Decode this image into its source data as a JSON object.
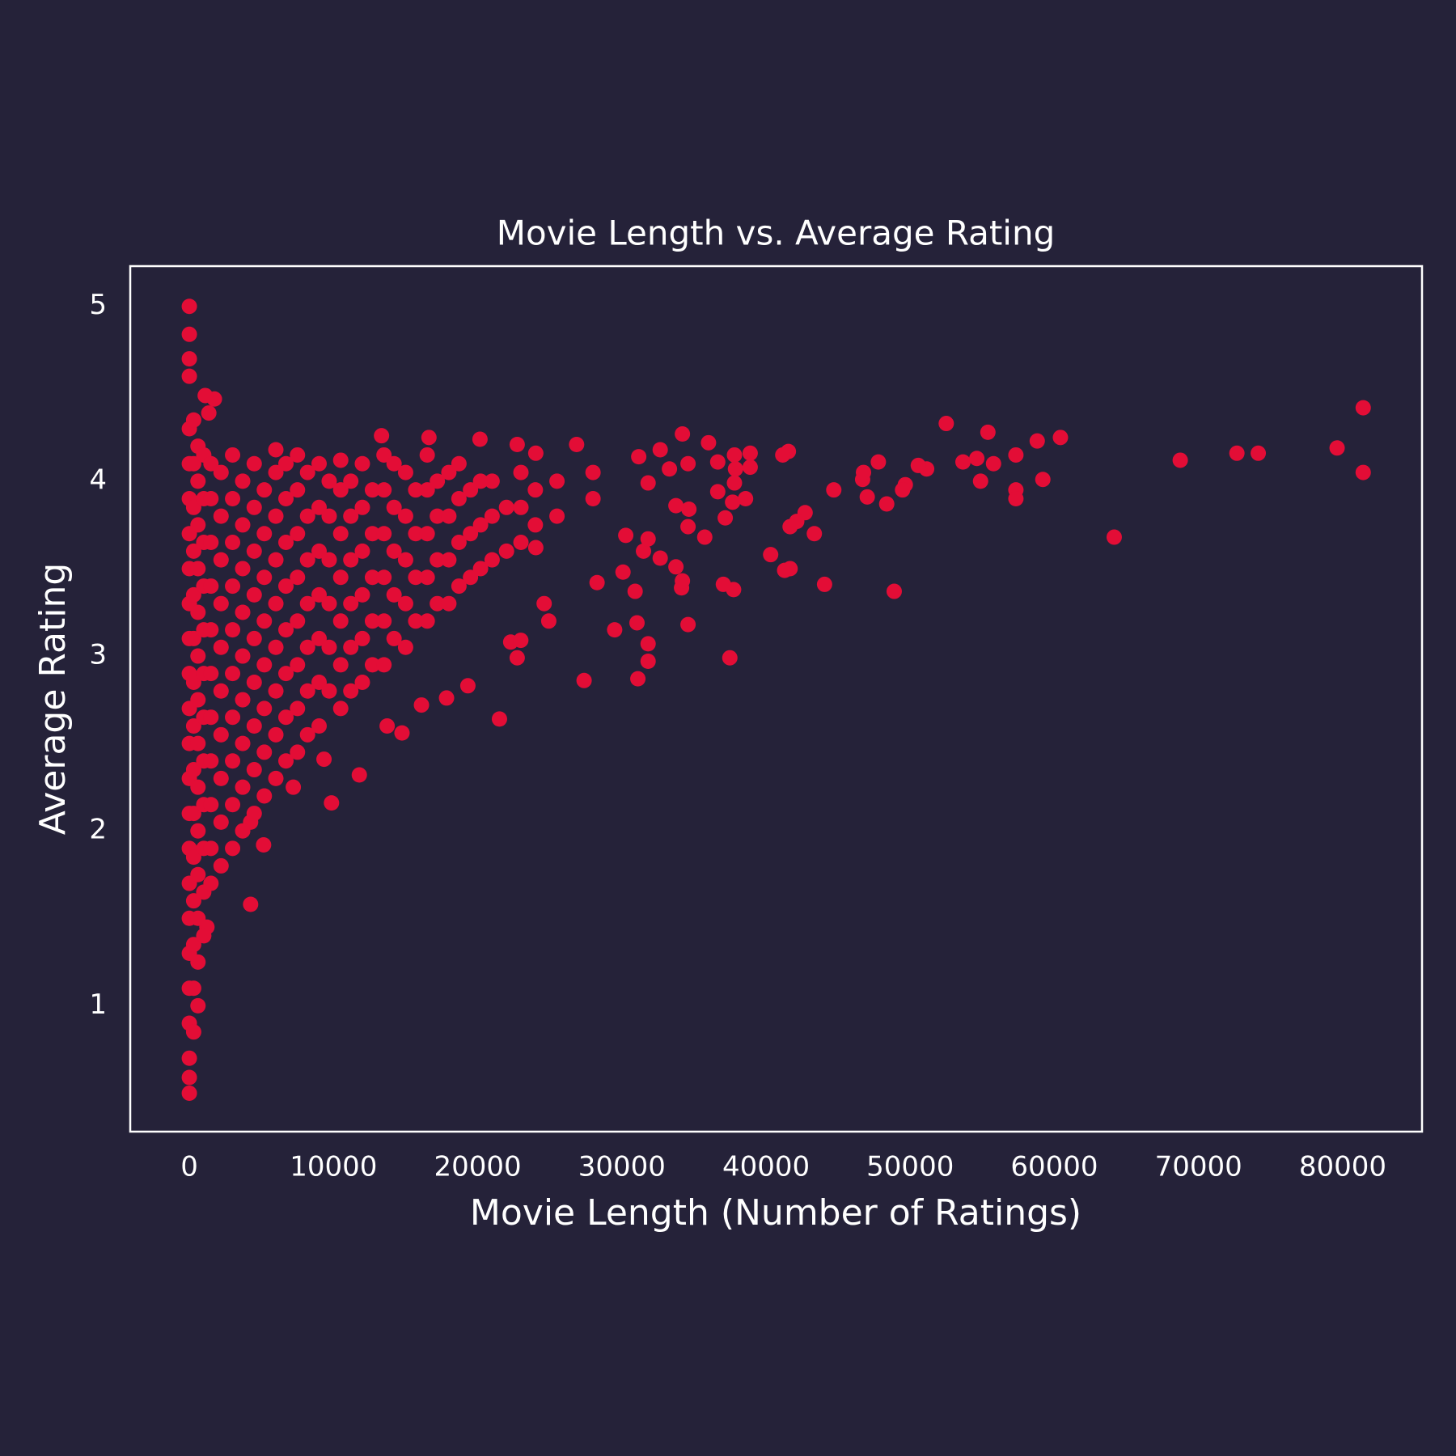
{
  "chart_data": {
    "type": "scatter",
    "title": "Movie Length vs. Average Rating",
    "x_label": "Movie Length (Number of Ratings)",
    "y_label": "Average Rating",
    "color": "#e30d36",
    "background": "#252239",
    "grid": false,
    "xlim": [
      -4100,
      85500
    ],
    "ylim": [
      0.28,
      5.23
    ],
    "xticks": [
      0,
      10000,
      20000,
      30000,
      40000,
      50000,
      60000,
      70000,
      80000
    ],
    "yticks": [
      1,
      2,
      3,
      4,
      5
    ],
    "x": [
      81420,
      81420,
      79610,
      74140,
      72660,
      68730,
      64150,
      60420,
      58810,
      59200,
      57330,
      57330,
      57330,
      55390,
      55780,
      54880,
      53660,
      54620,
      52500,
      51140,
      50560,
      49660,
      49470,
      48890,
      48370,
      47790,
      47020,
      46700,
      46760,
      44700,
      44060,
      43350,
      42710,
      42130,
      41670,
      41670,
      41290,
      41550,
      41160,
      40320,
      38900,
      38900,
      37880,
      37810,
      38580,
      37680,
      37810,
      37750,
      37040,
      37490,
      37170,
      36650,
      36650,
      36010,
      35750,
      34590,
      34590,
      34650,
      34140,
      34200,
      34200,
      33750,
      33750,
      34590,
      33300,
      32660,
      32660,
      31820,
      31820,
      31110,
      31050,
      30920,
      31170,
      31820,
      31500,
      31820,
      30270,
      29500,
      30080,
      27380,
      28280,
      21510,
      22740,
      22290,
      19320,
      17840,
      16100,
      14750,
      13720,
      11790,
      9860,
      9340,
      7210,
      5150,
      4250,
      4250,
      1220,
      0,
      0,
      1740,
      1100,
      1350,
      0,
      0,
      13330,
      16620,
      20160,
      22740,
      24030,
      26860,
      24030,
      24930,
      24610,
      22990,
      0,
      0,
      0,
      0,
      0,
      0,
      0,
      0,
      0,
      0,
      0,
      0,
      0,
      0,
      0,
      0,
      0,
      0,
      0,
      0,
      0,
      300,
      300,
      300,
      300,
      300,
      300,
      300,
      300,
      300,
      300,
      300,
      300,
      300,
      300,
      300,
      600,
      600,
      600,
      600,
      600,
      600,
      600,
      600,
      600,
      600,
      600,
      600,
      600,
      600,
      1000,
      1000,
      1000,
      1000,
      1000,
      1000,
      1000,
      1000,
      1000,
      1000,
      1000,
      1000,
      1500,
      1500,
      1500,
      1500,
      1500,
      1500,
      1500,
      1500,
      1500,
      1500,
      1500,
      2200,
      2200,
      2200,
      2200,
      2200,
      2200,
      2200,
      2200,
      2200,
      2200,
      3000,
      3000,
      3000,
      3000,
      3000,
      3000,
      3000,
      3000,
      3000,
      3000,
      3700,
      3700,
      3700,
      3700,
      3700,
      3700,
      3700,
      3700,
      3700,
      4500,
      4500,
      4500,
      4500,
      4500,
      4500,
      4500,
      4500,
      4500,
      5200,
      5200,
      5200,
      5200,
      5200,
      5200,
      5200,
      5200,
      6000,
      6000,
      6000,
      6000,
      6000,
      6000,
      6000,
      6000,
      6000,
      6700,
      6700,
      6700,
      6700,
      6700,
      6700,
      6700,
      6700,
      7500,
      7500,
      7500,
      7500,
      7500,
      7500,
      7500,
      7500,
      8200,
      8200,
      8200,
      8200,
      8200,
      8200,
      8200,
      9000,
      9000,
      9000,
      9000,
      9000,
      9000,
      9000,
      9700,
      9700,
      9700,
      9700,
      9700,
      9700,
      10500,
      10500,
      10500,
      10500,
      10500,
      10500,
      10500,
      11200,
      11200,
      11200,
      11200,
      11200,
      11200,
      12000,
      12000,
      12000,
      12000,
      12000,
      12000,
      12700,
      12700,
      12700,
      12700,
      12700,
      13500,
      13500,
      13500,
      13500,
      13500,
      13500,
      14200,
      14200,
      14200,
      14200,
      14200,
      15000,
      15000,
      15000,
      15000,
      15000,
      15700,
      15700,
      15700,
      15700,
      16500,
      16500,
      16500,
      16500,
      16500,
      17200,
      17200,
      17200,
      17200,
      18000,
      18000,
      18000,
      18000,
      18700,
      18700,
      18700,
      18700,
      19500,
      19500,
      19500,
      20200,
      20200,
      20200,
      21000,
      21000,
      21000,
      22000,
      22000,
      23000,
      23000,
      23000,
      24000,
      24000,
      25500,
      25500,
      28000,
      28000
    ],
    "values": [
      4.42,
      4.05,
      4.19,
      4.16,
      4.16,
      4.12,
      3.68,
      4.25,
      4.23,
      4.01,
      4.15,
      3.95,
      3.9,
      4.28,
      4.1,
      4.0,
      4.11,
      4.13,
      4.33,
      4.07,
      4.09,
      3.98,
      3.95,
      3.37,
      3.87,
      4.11,
      3.91,
      4.01,
      4.05,
      3.95,
      3.41,
      3.7,
      3.82,
      3.77,
      3.74,
      3.5,
      3.49,
      4.17,
      4.15,
      3.58,
      4.08,
      4.16,
      4.07,
      4.15,
      3.9,
      3.88,
      3.99,
      3.38,
      3.41,
      2.99,
      3.79,
      3.94,
      4.11,
      4.22,
      3.68,
      3.18,
      3.74,
      3.84,
      3.39,
      3.43,
      4.27,
      3.51,
      3.86,
      4.1,
      4.07,
      4.18,
      3.56,
      3.07,
      2.97,
      2.87,
      3.19,
      3.37,
      4.14,
      3.99,
      3.6,
      3.67,
      3.69,
      3.15,
      3.48,
      2.86,
      3.42,
      2.64,
      2.99,
      3.08,
      2.83,
      2.76,
      2.72,
      2.56,
      2.6,
      2.32,
      2.16,
      2.41,
      2.25,
      1.92,
      1.58,
      2.05,
      1.45,
      5.0,
      4.84,
      4.47,
      4.49,
      4.39,
      0.5,
      0.59,
      4.26,
      4.25,
      4.24,
      4.21,
      4.16,
      4.21,
      3.62,
      3.2,
      3.3,
      3.09,
      0.7,
      0.9,
      1.1,
      1.3,
      1.5,
      1.7,
      1.9,
      2.1,
      2.3,
      2.5,
      2.7,
      2.9,
      3.1,
      3.3,
      3.5,
      3.7,
      3.9,
      4.1,
      4.3,
      4.6,
      4.7,
      0.85,
      1.1,
      1.35,
      1.6,
      1.85,
      2.1,
      2.35,
      2.6,
      2.85,
      3.1,
      3.35,
      3.6,
      3.85,
      4.1,
      4.35,
      1.0,
      1.25,
      1.5,
      1.75,
      2.0,
      2.25,
      2.5,
      2.75,
      3.0,
      3.25,
      3.5,
      3.75,
      4.0,
      4.2,
      1.4,
      1.65,
      1.9,
      2.15,
      2.4,
      2.65,
      2.9,
      3.15,
      3.4,
      3.65,
      3.9,
      4.15,
      1.7,
      1.9,
      2.15,
      2.4,
      2.65,
      2.9,
      3.15,
      3.4,
      3.65,
      3.9,
      4.1,
      1.8,
      2.05,
      2.3,
      2.55,
      2.8,
      3.05,
      3.3,
      3.55,
      3.8,
      4.05,
      1.9,
      2.15,
      2.4,
      2.65,
      2.9,
      3.15,
      3.4,
      3.65,
      3.9,
      4.15,
      2.0,
      2.25,
      2.5,
      2.75,
      3.0,
      3.25,
      3.5,
      3.75,
      4.0,
      2.1,
      2.35,
      2.6,
      2.85,
      3.1,
      3.35,
      3.6,
      3.85,
      4.1,
      2.2,
      2.45,
      2.7,
      2.95,
      3.2,
      3.45,
      3.7,
      3.95,
      2.3,
      2.55,
      2.8,
      3.05,
      3.3,
      3.55,
      3.8,
      4.05,
      4.18,
      2.4,
      2.65,
      2.9,
      3.15,
      3.4,
      3.65,
      3.9,
      4.1,
      2.45,
      2.7,
      2.95,
      3.2,
      3.45,
      3.7,
      3.95,
      4.15,
      2.55,
      2.8,
      3.05,
      3.3,
      3.55,
      3.8,
      4.05,
      2.6,
      2.85,
      3.1,
      3.35,
      3.6,
      3.85,
      4.1,
      2.8,
      3.05,
      3.3,
      3.55,
      3.8,
      4.0,
      2.7,
      2.95,
      3.2,
      3.45,
      3.7,
      3.95,
      4.12,
      2.8,
      3.05,
      3.3,
      3.55,
      3.8,
      4.0,
      2.85,
      3.1,
      3.35,
      3.6,
      3.85,
      4.1,
      2.95,
      3.2,
      3.45,
      3.7,
      3.95,
      2.95,
      3.2,
      3.45,
      3.7,
      3.95,
      4.15,
      3.1,
      3.35,
      3.6,
      3.85,
      4.1,
      3.05,
      3.3,
      3.55,
      3.8,
      4.05,
      3.2,
      3.45,
      3.7,
      3.95,
      3.2,
      3.45,
      3.7,
      3.95,
      4.15,
      3.3,
      3.55,
      3.8,
      4.0,
      3.3,
      3.55,
      3.8,
      4.05,
      3.4,
      3.65,
      3.9,
      4.1,
      3.45,
      3.7,
      3.95,
      3.5,
      3.75,
      4.0,
      3.55,
      3.8,
      4.0,
      3.6,
      3.85,
      3.65,
      3.85,
      4.05,
      3.75,
      3.95,
      3.8,
      4.0,
      3.9,
      4.05
    ]
  }
}
